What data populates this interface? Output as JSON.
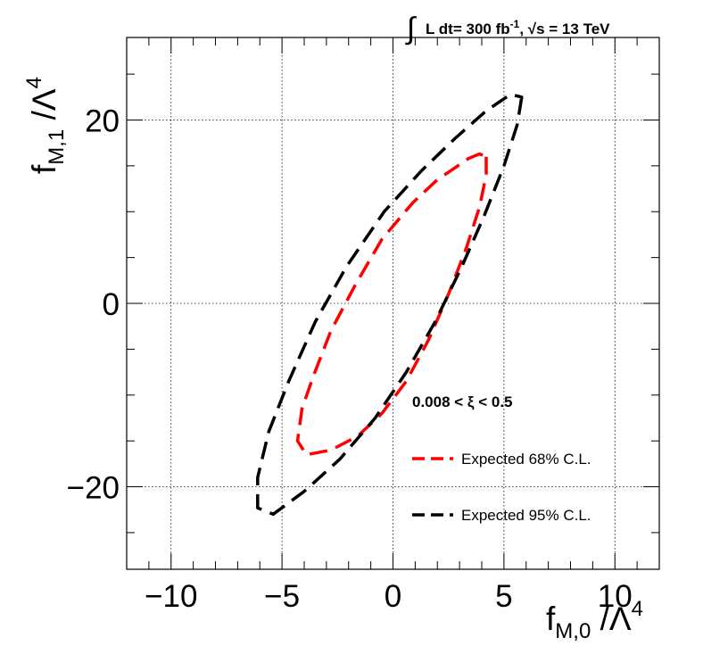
{
  "header": {
    "integral_symbol": "∫",
    "lumi_prefix": "L dt= 300 fb",
    "lumi_exp": "-1",
    "lumi_mid": ", ",
    "sqrt_symbol": "√s",
    "lumi_suffix": " = 13 TeV"
  },
  "axes": {
    "x_title_main": "f",
    "x_title_sub": "M,0",
    "x_title_rest": " /Λ",
    "x_title_exp": "4",
    "y_title_main": "f",
    "y_title_sub": "M,1",
    "y_title_rest": " /Λ",
    "y_title_exp": "4"
  },
  "annotations": {
    "cut_label": "0.008 < ξ < 0.5"
  },
  "chart_data": {
    "type": "line",
    "xlim": [
      -12,
      12
    ],
    "ylim": [
      -29,
      29
    ],
    "x_ticks": [
      -10,
      -5,
      0,
      5,
      10
    ],
    "x_tick_labels": [
      "−10",
      "−5",
      "0",
      "5",
      "10"
    ],
    "y_ticks": [
      -20,
      0,
      20
    ],
    "y_tick_labels": [
      "−20",
      "0",
      "20"
    ],
    "grid": true,
    "legend_position": "bottom-right",
    "series": [
      {
        "name": "Expected 68% C.L.",
        "color": "#ff0000",
        "closed": true,
        "points": [
          [
            4.2,
            16.0
          ],
          [
            4.2,
            14.0
          ],
          [
            3.9,
            10.5
          ],
          [
            3.3,
            6.0
          ],
          [
            2.5,
            1.0
          ],
          [
            1.6,
            -4.0
          ],
          [
            0.6,
            -8.5
          ],
          [
            -0.5,
            -12.0
          ],
          [
            -1.6,
            -14.5
          ],
          [
            -2.8,
            -16.0
          ],
          [
            -3.9,
            -16.5
          ],
          [
            -4.3,
            -15.0
          ],
          [
            -4.1,
            -11.5
          ],
          [
            -3.6,
            -8.0
          ],
          [
            -2.8,
            -3.0
          ],
          [
            -1.7,
            2.0
          ],
          [
            -0.5,
            7.0
          ],
          [
            0.9,
            11.0
          ],
          [
            2.0,
            13.5
          ],
          [
            2.8,
            14.8
          ],
          [
            3.4,
            15.8
          ],
          [
            3.9,
            16.3
          ],
          [
            4.2,
            16.0
          ]
        ]
      },
      {
        "name": "Expected 95% C.L.",
        "color": "#000000",
        "closed": true,
        "points": [
          [
            5.8,
            22.5
          ],
          [
            5.6,
            19.5
          ],
          [
            5.0,
            15.0
          ],
          [
            4.1,
            9.5
          ],
          [
            3.1,
            4.0
          ],
          [
            1.9,
            -2.0
          ],
          [
            0.6,
            -7.5
          ],
          [
            -0.8,
            -12.5
          ],
          [
            -2.4,
            -17.0
          ],
          [
            -4.0,
            -20.5
          ],
          [
            -5.4,
            -23.0
          ],
          [
            -6.1,
            -22.3
          ],
          [
            -6.1,
            -19.0
          ],
          [
            -5.6,
            -14.0
          ],
          [
            -4.7,
            -8.5
          ],
          [
            -3.5,
            -2.0
          ],
          [
            -2.1,
            4.0
          ],
          [
            -0.4,
            10.0
          ],
          [
            1.3,
            14.5
          ],
          [
            2.8,
            18.0
          ],
          [
            4.2,
            21.0
          ],
          [
            5.3,
            22.8
          ],
          [
            5.8,
            22.5
          ]
        ]
      }
    ]
  }
}
